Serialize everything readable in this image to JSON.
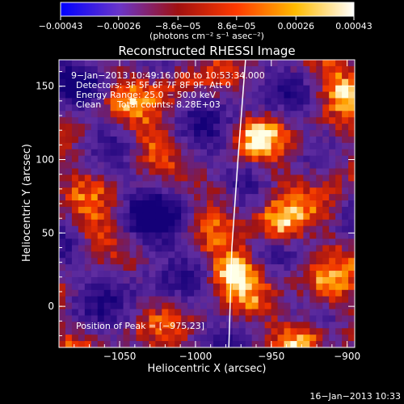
{
  "chart_data": {
    "type": "heatmap",
    "title": "Reconstructed RHESSI Image",
    "xlabel": "Heliocentric X (arcsec)",
    "ylabel": "Heliocentric Y (arcsec)",
    "xlim": [
      -1090,
      -895
    ],
    "ylim": [
      -28,
      168
    ],
    "x_ticks": [
      -1050,
      -1000,
      -950,
      -900
    ],
    "x_tick_labels": [
      "−1050",
      "−1000",
      "−950",
      "−900"
    ],
    "y_ticks": [
      0,
      50,
      100,
      150
    ],
    "y_tick_labels": [
      "0",
      "50",
      "100",
      "150"
    ],
    "colorbar": {
      "ticks": [
        -0.00043,
        -0.00026,
        -8.6e-05,
        8.6e-05,
        0.00026,
        0.00043
      ],
      "tick_labels": [
        "−0.00043",
        "−0.00026",
        "−8.6e−05",
        "8.6e−05",
        "0.00026",
        "0.00043"
      ],
      "units_label": "(photons cm⁻² s⁻¹ asec⁻²)",
      "colors": [
        "#0000ff",
        "#6a35c9",
        "#a01010",
        "#ff3a00",
        "#ffbb00",
        "#ffffff"
      ]
    },
    "annotations": {
      "time_range": "9−Jan−2013 10:49:16.000 to 10:53:34.000",
      "detectors": "Detectors: 3F 5F 6F 7F 8F 9F, Att 0",
      "energy_range": "Energy Range: 25.0 − 50.0 keV",
      "clean_label": "Clean",
      "total_counts": "Total counts: 8.28E+03",
      "peak_text": "Position of Peak = [−975,23]"
    },
    "peak_position": [
      -975,
      23
    ],
    "limb_curve": [
      [
        -967,
        168
      ],
      [
        -972,
        100
      ],
      [
        -976,
        40
      ],
      [
        -978,
        -28
      ]
    ],
    "bright_sources": [
      {
        "x": -975,
        "y": 23,
        "amp": 1.0
      },
      {
        "x": -945,
        "y": 55,
        "amp": 0.9
      },
      {
        "x": -905,
        "y": 150,
        "amp": 0.65
      },
      {
        "x": -960,
        "y": 115,
        "amp": 0.6
      },
      {
        "x": -1030,
        "y": 110,
        "amp": 0.55
      },
      {
        "x": -915,
        "y": 10,
        "amp": 0.6
      },
      {
        "x": -930,
        "y": -20,
        "amp": 0.8
      },
      {
        "x": -1065,
        "y": 50,
        "amp": 0.5
      },
      {
        "x": -985,
        "y": 80,
        "amp": 0.45
      },
      {
        "x": -1010,
        "y": 155,
        "amp": 0.45
      },
      {
        "x": -1050,
        "y": 140,
        "amp": 0.4
      },
      {
        "x": -905,
        "y": 95,
        "amp": 0.5
      }
    ],
    "dim_regions": [
      {
        "x": -1025,
        "y": 60,
        "amp": 0.7
      },
      {
        "x": -1045,
        "y": 20,
        "amp": 0.6
      },
      {
        "x": -1000,
        "y": 100,
        "amp": 0.5
      },
      {
        "x": -1075,
        "y": 150,
        "amp": 0.5
      },
      {
        "x": -965,
        "y": 145,
        "amp": 0.4
      }
    ]
  },
  "footer": {
    "timestamp": "16−Jan−2013 10:33"
  }
}
